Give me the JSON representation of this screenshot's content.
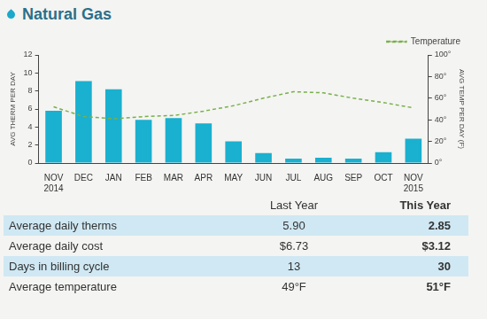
{
  "header": {
    "title": "Natural Gas"
  },
  "chart_data": {
    "type": "bar",
    "categories": [
      "NOV 2014",
      "DEC",
      "JAN",
      "FEB",
      "MAR",
      "APR",
      "MAY",
      "JUN",
      "JUL",
      "AUG",
      "SEP",
      "OCT",
      "NOV 2015"
    ],
    "series": [
      {
        "type": "bar",
        "color": "#1ab0cf",
        "values": [
          5.8,
          9.1,
          8.2,
          4.8,
          5.0,
          4.4,
          2.4,
          1.1,
          0.5,
          0.6,
          0.5,
          1.2,
          2.7
        ]
      },
      {
        "name": "Temperature",
        "type": "line",
        "axis": "y2",
        "color": "#78b04a",
        "line_style": "dashed",
        "values": [
          52,
          43,
          41,
          43,
          44,
          48,
          53,
          60,
          66,
          65,
          60,
          56,
          51
        ]
      }
    ],
    "y_label": "AVG THERM PER DAY",
    "y2_label": "AVG TEMP PER DAY (F)",
    "ylim": [
      0,
      12
    ],
    "yticks": [
      0,
      2,
      4,
      6,
      8,
      10,
      12
    ],
    "y2lim": [
      0,
      100
    ],
    "y2ticks": [
      {
        "value": 0,
        "label": "0°"
      },
      {
        "value": 20,
        "label": "20°"
      },
      {
        "value": 40,
        "label": "40°"
      },
      {
        "value": 60,
        "label": "60°"
      },
      {
        "value": 80,
        "label": "80°"
      },
      {
        "value": 100,
        "label": "100°"
      }
    ],
    "grid": false,
    "legend": "top-right"
  },
  "table": {
    "columns": [
      "",
      "Last Year",
      "This Year"
    ],
    "rows": [
      [
        "Average daily therms",
        "5.90",
        "2.85"
      ],
      [
        "Average daily cost",
        "$6.73",
        "$3.12"
      ],
      [
        "Days in billing cycle",
        "13",
        "30"
      ],
      [
        "Average temperature",
        "49°F",
        "51°F"
      ]
    ]
  }
}
